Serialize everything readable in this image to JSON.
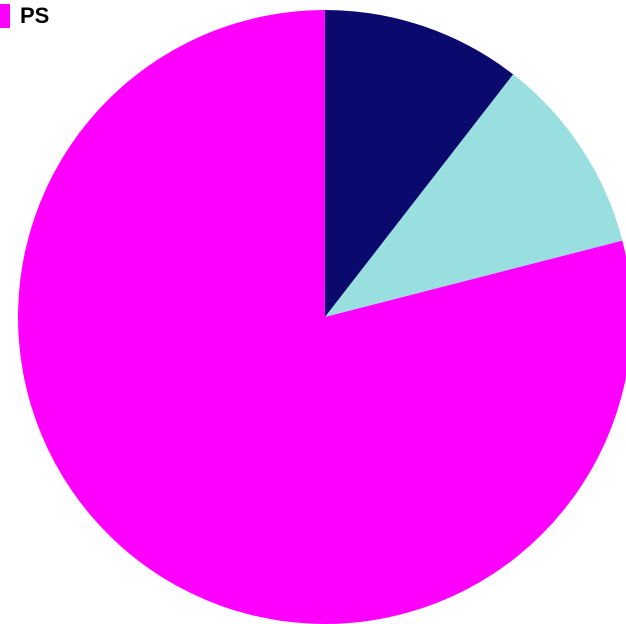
{
  "chart_data": {
    "type": "pie",
    "title": "",
    "series": [
      {
        "name": "PS",
        "value": 0.79,
        "color": "#FF00FF"
      }
    ],
    "slices": [
      {
        "name": "",
        "value": 0.105,
        "color": "#0A0A6E"
      },
      {
        "name": "",
        "value": 0.105,
        "color": "#9ADFE0"
      },
      {
        "name": "PS",
        "value": 0.79,
        "color": "#FF00FF"
      }
    ],
    "start_angle_deg": 0,
    "direction": "clockwise",
    "legend": {
      "placement": "top-left",
      "entries": [
        "PS"
      ]
    }
  }
}
